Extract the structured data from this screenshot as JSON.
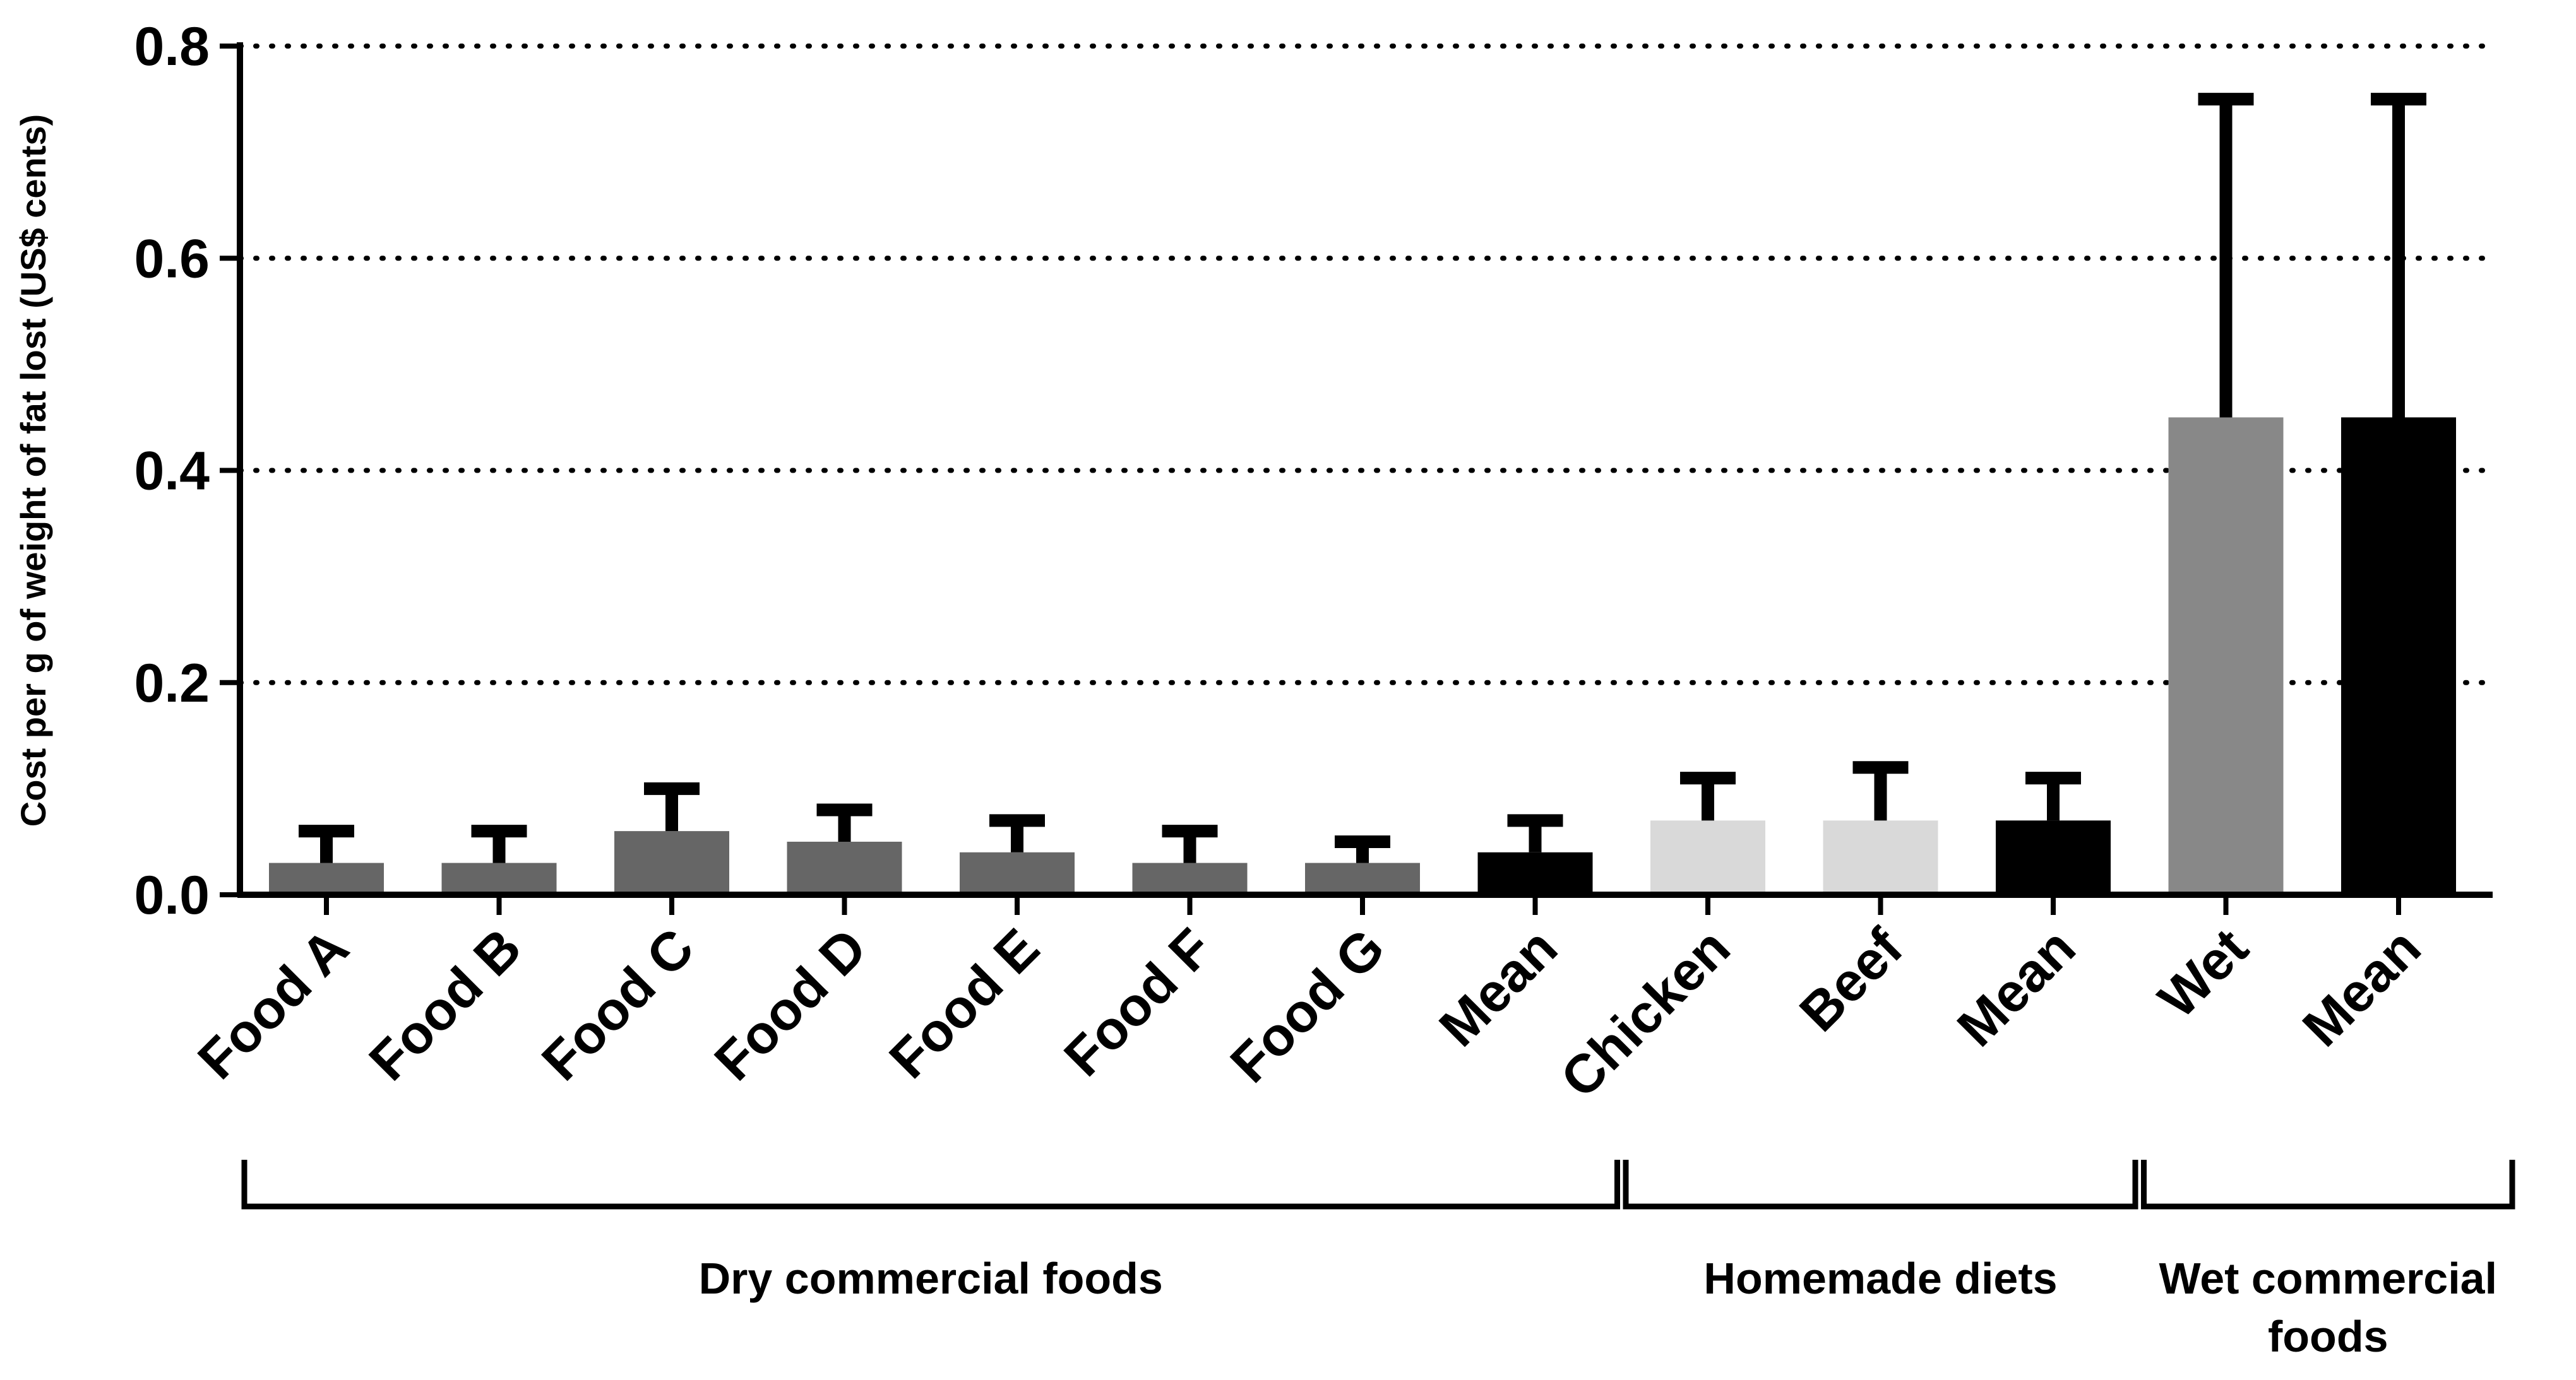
{
  "chart_data": {
    "type": "bar",
    "ylabel": "Cost per g of weight of fat lost (US$ cents)",
    "ylim": [
      0,
      0.8
    ],
    "yticks": [
      "0.0",
      "0.2",
      "0.4",
      "0.6",
      "0.8"
    ],
    "grid": "horizontal dotted",
    "categories": [
      "Food A",
      "Food B",
      "Food C",
      "Food D",
      "Food E",
      "Food F",
      "Food G",
      "Mean",
      "Chicken",
      "Beef",
      "Mean",
      "Wet",
      "Mean"
    ],
    "values": [
      0.03,
      0.03,
      0.06,
      0.05,
      0.04,
      0.03,
      0.03,
      0.04,
      0.07,
      0.07,
      0.07,
      0.45,
      0.45
    ],
    "error_upper": [
      0.06,
      0.06,
      0.1,
      0.08,
      0.07,
      0.06,
      0.05,
      0.07,
      0.11,
      0.12,
      0.11,
      0.75,
      0.75
    ],
    "bar_colors": [
      "#666666",
      "#666666",
      "#666666",
      "#666666",
      "#666666",
      "#666666",
      "#666666",
      "#000000",
      "#d9d9d9",
      "#d9d9d9",
      "#000000",
      "#888888",
      "#000000"
    ],
    "groups": [
      {
        "label": "Dry commercial foods",
        "start": 0,
        "end": 7
      },
      {
        "label": "Homemade diets",
        "start": 8,
        "end": 10
      },
      {
        "label": "Wet commercial foods",
        "start": 11,
        "end": 12
      }
    ]
  }
}
